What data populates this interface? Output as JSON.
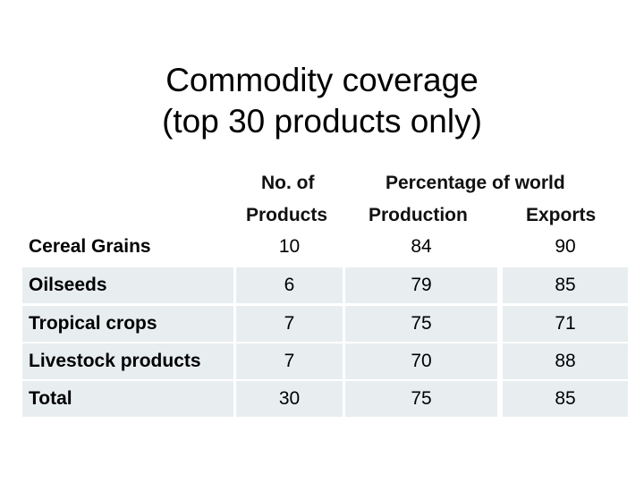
{
  "title": {
    "line1": "Commodity coverage",
    "line2": "(top 30 products only)"
  },
  "table": {
    "headers": {
      "products_line1": "No. of",
      "products_line2": "Products",
      "percentage_group": "Percentage of world",
      "production": "Production",
      "exports": "Exports"
    },
    "rows": [
      {
        "label": "Cereal Grains",
        "products": "10",
        "production": "84",
        "exports": "90"
      },
      {
        "label": "Oilseeds",
        "products": "6",
        "production": "79",
        "exports": "85"
      },
      {
        "label": "Tropical crops",
        "products": "7",
        "production": "75",
        "exports": "71"
      },
      {
        "label": "Livestock products",
        "products": "7",
        "production": "70",
        "exports": "88"
      },
      {
        "label": "Total",
        "products": "30",
        "production": "75",
        "exports": "85"
      }
    ]
  },
  "colors": {
    "row_fill": "#e8eef0",
    "text": "#000000"
  }
}
